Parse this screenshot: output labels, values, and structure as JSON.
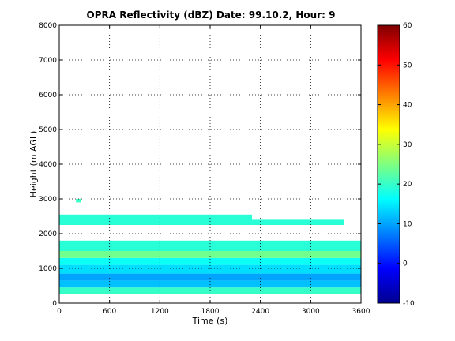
{
  "chart_data": {
    "type": "heatmap",
    "title": "OPRA Reflectivity (dBZ)  Date: 99.10.2, Hour: 9",
    "xlabel": "Time (s)",
    "ylabel": "Height (m AGL)",
    "xlim": [
      0,
      3600
    ],
    "ylim": [
      0,
      8000
    ],
    "x_ticks": [
      0,
      600,
      1200,
      1800,
      2400,
      3000,
      3600
    ],
    "y_ticks": [
      0,
      1000,
      2000,
      3000,
      4000,
      5000,
      6000,
      7000,
      8000
    ],
    "grid": true,
    "colorbar": {
      "colormap": "jet",
      "range": [
        -10,
        60
      ],
      "ticks": [
        -10,
        0,
        10,
        20,
        30,
        40,
        50,
        60
      ],
      "placement": "right"
    },
    "bands": [
      {
        "height_range": [
          250,
          450
        ],
        "time_range": [
          0,
          3600
        ],
        "value": 20
      },
      {
        "height_range": [
          450,
          650
        ],
        "time_range": [
          0,
          3600
        ],
        "value": 12
      },
      {
        "height_range": [
          650,
          850
        ],
        "time_range": [
          0,
          3600
        ],
        "value": 10
      },
      {
        "height_range": [
          850,
          1100
        ],
        "time_range": [
          0,
          3600
        ],
        "value": 14
      },
      {
        "height_range": [
          1100,
          1300
        ],
        "time_range": [
          0,
          3600
        ],
        "value": 17
      },
      {
        "height_range": [
          1300,
          1500
        ],
        "time_range": [
          0,
          3600
        ],
        "value": 24
      },
      {
        "height_range": [
          1500,
          1800
        ],
        "time_range": [
          0,
          3600
        ],
        "value": 19
      },
      {
        "height_range": [
          2250,
          2550
        ],
        "time_range": [
          0,
          2300
        ],
        "value": 19
      },
      {
        "height_range": [
          2250,
          2400
        ],
        "time_range": [
          2300,
          3400
        ],
        "value": 19
      },
      {
        "height_range": [
          2900,
          3000
        ],
        "time_range": [
          200,
          260
        ],
        "value": 20
      }
    ]
  }
}
